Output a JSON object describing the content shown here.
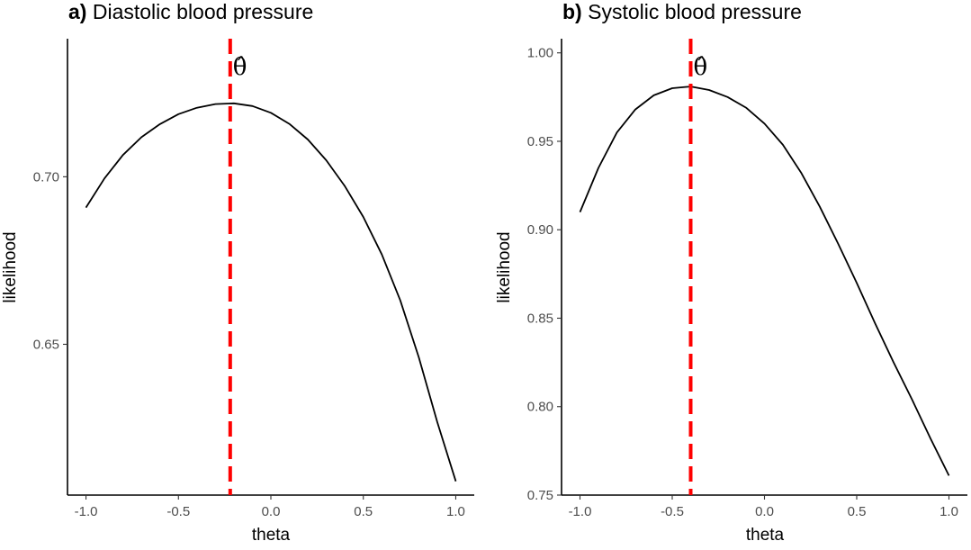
{
  "chart_data": [
    {
      "type": "line",
      "title_prefix": "a)",
      "title": "Diastolic blood pressure",
      "xlabel": "theta",
      "ylabel": "likelihood",
      "xlim": [
        -1.1,
        1.1
      ],
      "ylim": [
        0.605,
        0.7412
      ],
      "x_ticks": [
        -1.0,
        -0.5,
        0.0,
        0.5,
        1.0
      ],
      "x_tick_labels": [
        "-1.0",
        "-0.5",
        "0.0",
        "0.5",
        "1.0"
      ],
      "y_ticks": [
        0.65,
        0.7
      ],
      "y_tick_labels": [
        "0.65",
        "0.70"
      ],
      "series": [
        {
          "color": "#000000",
          "x": [
            -1.0,
            -0.9,
            -0.8,
            -0.7,
            -0.6,
            -0.5,
            -0.4,
            -0.3,
            -0.2,
            -0.1,
            0.0,
            0.1,
            0.2,
            0.3,
            0.4,
            0.5,
            0.6,
            0.7,
            0.8,
            0.9,
            1.0
          ],
          "y": [
            0.6908,
            0.6995,
            0.7065,
            0.7118,
            0.7157,
            0.7187,
            0.7206,
            0.7217,
            0.7219,
            0.7211,
            0.7191,
            0.7158,
            0.7111,
            0.7049,
            0.6972,
            0.688,
            0.6768,
            0.6631,
            0.6461,
            0.6268,
            0.6091
          ]
        }
      ],
      "vline": {
        "x": -0.22,
        "color": "#ff0000",
        "label": "θ̂"
      },
      "grid": false,
      "legend": "none"
    },
    {
      "type": "line",
      "title_prefix": "b)",
      "title": "Systolic blood pressure",
      "xlabel": "theta",
      "ylabel": "likelihood",
      "xlim": [
        -1.1,
        1.1
      ],
      "ylim": [
        0.75,
        1.008
      ],
      "x_ticks": [
        -1.0,
        -0.5,
        0.0,
        0.5,
        1.0
      ],
      "x_tick_labels": [
        "-1.0",
        "-0.5",
        "0.0",
        "0.5",
        "1.0"
      ],
      "y_ticks": [
        0.75,
        0.8,
        0.85,
        0.9,
        0.95,
        1.0
      ],
      "y_tick_labels": [
        "0.75",
        "0.80",
        "0.85",
        "0.90",
        "0.95",
        "1.00"
      ],
      "series": [
        {
          "color": "#000000",
          "x": [
            -1.0,
            -0.9,
            -0.8,
            -0.7,
            -0.6,
            -0.5,
            -0.4,
            -0.3,
            -0.2,
            -0.1,
            0.0,
            0.1,
            0.2,
            0.3,
            0.4,
            0.5,
            0.6,
            0.7,
            0.8,
            0.9,
            1.0
          ],
          "y": [
            0.91,
            0.935,
            0.955,
            0.968,
            0.976,
            0.98,
            0.981,
            0.979,
            0.975,
            0.969,
            0.96,
            0.948,
            0.932,
            0.913,
            0.892,
            0.87,
            0.847,
            0.825,
            0.804,
            0.782,
            0.761
          ]
        }
      ],
      "vline": {
        "x": -0.4,
        "color": "#ff0000",
        "label": "θ̂"
      },
      "grid": false,
      "legend": "none"
    }
  ]
}
